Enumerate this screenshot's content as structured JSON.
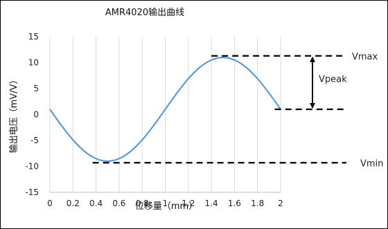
{
  "chart_data": {
    "type": "line",
    "title": "AMR4020输出曲线",
    "xlabel": "位移量（mm）",
    "ylabel": "输出电压（mV/V）",
    "xlim": [
      0,
      2
    ],
    "ylim": [
      -15,
      15
    ],
    "x_ticks": [
      0,
      0.2,
      0.4,
      0.6,
      0.8,
      1,
      1.2,
      1.4,
      1.6,
      1.8,
      2
    ],
    "x_tick_labels": [
      "0",
      "0.2",
      "0.4",
      "0.6",
      "0.8",
      "1",
      "1.2",
      "1.4",
      "1.6",
      "1.8",
      "2"
    ],
    "y_ticks": [
      -15,
      -10,
      -5,
      0,
      5,
      10,
      15
    ],
    "y_tick_labels": [
      "-15",
      "-10",
      "-5",
      "0",
      "5",
      "10",
      "15"
    ],
    "grid": "vertical",
    "series": [
      {
        "color": "#5b9bd5",
        "x": [
          0,
          0.1,
          0.2,
          0.3,
          0.4,
          0.5,
          0.6,
          0.7,
          0.8,
          0.9,
          1.0,
          1.1,
          1.2,
          1.3,
          1.4,
          1.5,
          1.6,
          1.7,
          1.8,
          1.9,
          2.0
        ],
        "y": [
          1.0,
          -2.1,
          -4.9,
          -7.1,
          -8.5,
          -9.0,
          -8.5,
          -7.1,
          -4.9,
          -2.1,
          1.0,
          4.1,
          6.9,
          9.1,
          10.5,
          11.0,
          10.5,
          9.1,
          6.9,
          4.1,
          1.0
        ]
      }
    ],
    "reference_lines": [
      {
        "label": "Vmax",
        "y": 11.3,
        "x_start": 1.4
      },
      {
        "label": "",
        "y": 1.0,
        "x_start": 1.95
      },
      {
        "label": "Vmin",
        "y": -9.3,
        "x_start": 0.37
      }
    ],
    "arrow": {
      "label": "Vpeak",
      "from_y": 11.3,
      "to_y": 1.0
    }
  }
}
